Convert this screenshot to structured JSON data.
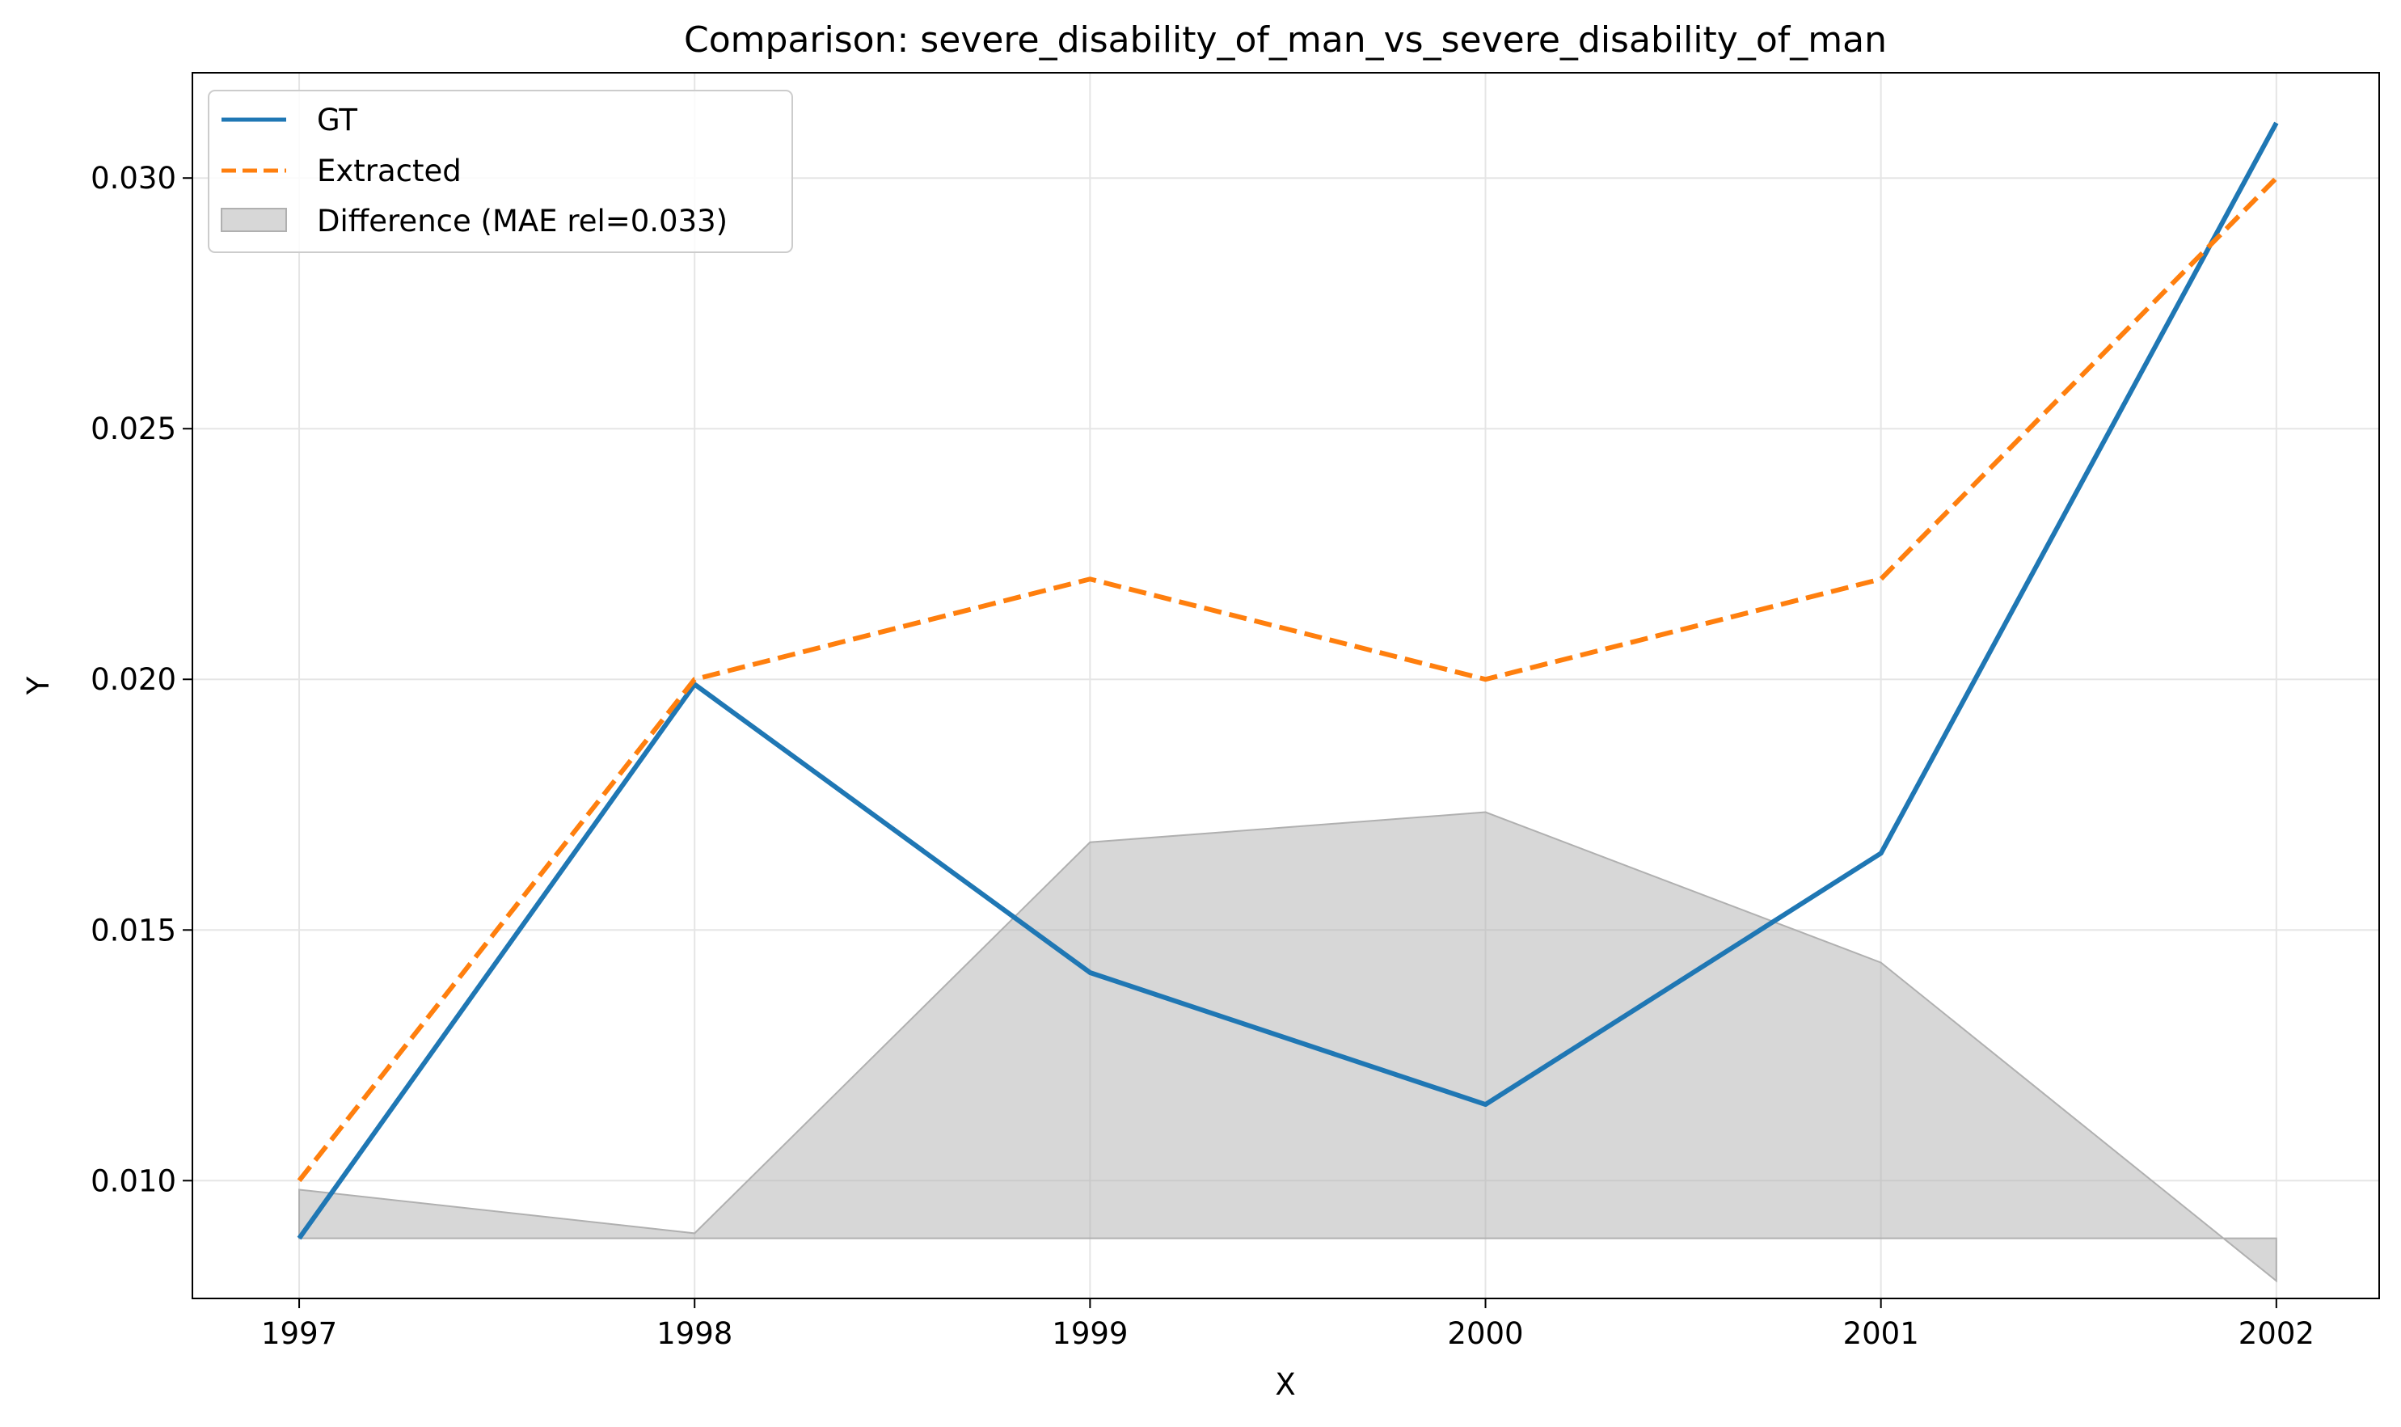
{
  "chart_data": {
    "type": "line",
    "title": "Comparison: severe_disability_of_man_vs_severe_disability_of_man",
    "xlabel": "X",
    "ylabel": "Y",
    "x": [
      1997,
      1998,
      1999,
      2000,
      2001,
      2002
    ],
    "xlim": [
      1996.73,
      2002.26
    ],
    "ylim": [
      0.00765,
      0.0321
    ],
    "x_ticks": [
      "1997",
      "1998",
      "1999",
      "2000",
      "2001",
      "2002"
    ],
    "y_ticks": [
      "0.010",
      "0.015",
      "0.020",
      "0.025",
      "0.030"
    ],
    "y_tick_values": [
      0.01,
      0.015,
      0.02,
      0.025,
      0.03
    ],
    "grid": true,
    "legend_position": "top-left",
    "series": [
      {
        "name": "GT",
        "values": [
          0.00885,
          0.0199,
          0.01415,
          0.01152,
          0.01653,
          0.0311
        ],
        "color": "#1f77b4",
        "style": "solid"
      },
      {
        "name": "Extracted",
        "values": [
          0.01,
          0.02,
          0.022,
          0.02,
          0.022,
          0.03
        ],
        "color": "#ff7f0e",
        "style": "dashed"
      }
    ],
    "difference_band": {
      "name": "Difference (MAE rel=0.033)",
      "baseline": 0.00885,
      "values": [
        0.00982,
        0.00895,
        0.01675,
        0.01735,
        0.01435,
        0.008
      ],
      "color": "#b0b0b0"
    }
  }
}
